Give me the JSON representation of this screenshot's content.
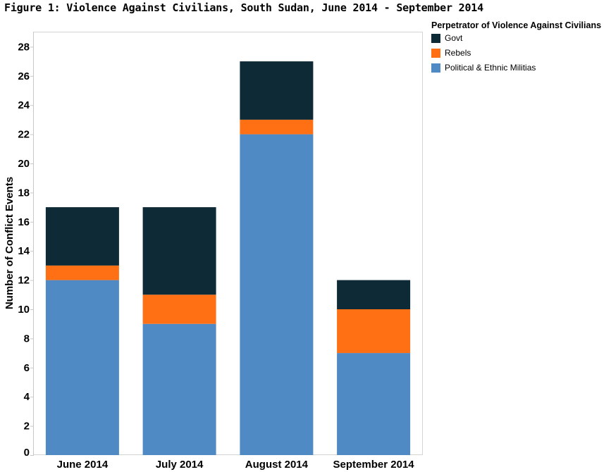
{
  "title": "Figure 1: Violence Against Civilians, South Sudan, June 2014 - September 2014",
  "legend": {
    "title": "Perpetrator of Violence Against Civilians"
  },
  "colors": {
    "govt": "#0e2a37",
    "rebels": "#ff7015",
    "militias": "#4f8ac5"
  },
  "chart_data": {
    "type": "bar",
    "stacked": true,
    "categories": [
      "June 2014",
      "July 2014",
      "August 2014",
      "September 2014"
    ],
    "series": [
      {
        "name": "Political & Ethnic Militias",
        "values": [
          12,
          9,
          22,
          7
        ]
      },
      {
        "name": "Rebels",
        "values": [
          1,
          2,
          1,
          3
        ]
      },
      {
        "name": "Govt",
        "values": [
          4,
          6,
          4,
          2
        ]
      }
    ],
    "legend_order": [
      "Govt",
      "Rebels",
      "Political & Ethnic Militias"
    ],
    "ylabel": "Number of Conflict Events",
    "xlabel": "",
    "ylim": [
      0,
      29
    ],
    "yticks": [
      0,
      2,
      4,
      6,
      8,
      10,
      12,
      14,
      16,
      18,
      20,
      22,
      24,
      26,
      28
    ],
    "legend_position": "top-right",
    "grid": false
  }
}
